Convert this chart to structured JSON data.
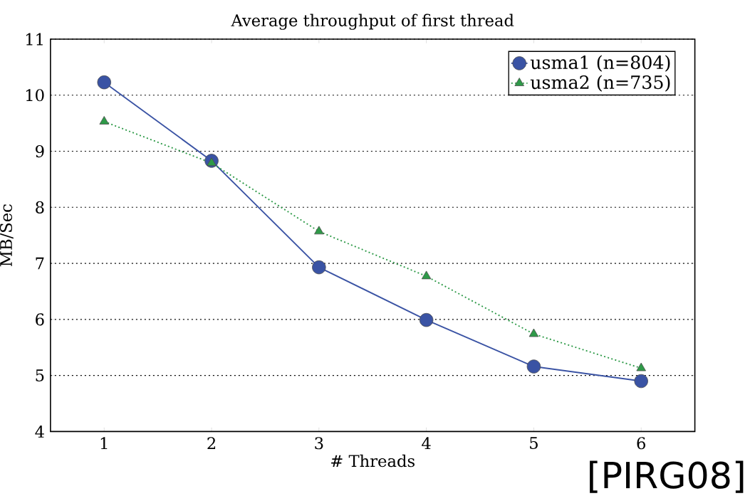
{
  "chart_data": {
    "type": "line",
    "title": "Average throughput of first thread",
    "xlabel": "# Threads",
    "ylabel": "MB/Sec",
    "x": [
      1,
      2,
      3,
      4,
      5,
      6
    ],
    "series": [
      {
        "name": "usma1 (n=804)",
        "color": "#3a53a4",
        "values": [
          10.23,
          8.83,
          6.93,
          5.99,
          5.16,
          4.9
        ],
        "marker": "circle",
        "line_style": "solid"
      },
      {
        "name": "usma2 (n=735)",
        "color": "#2e9a48",
        "values": [
          9.53,
          8.79,
          7.57,
          6.77,
          5.74,
          5.13
        ],
        "marker": "triangle",
        "line_style": "dotted"
      }
    ],
    "xlim": [
      0.5,
      6.5
    ],
    "ylim": [
      4,
      11
    ],
    "xticks": [
      1,
      2,
      3,
      4,
      5,
      6
    ],
    "yticks": [
      4,
      5,
      6,
      7,
      8,
      9,
      10,
      11
    ],
    "grid": "y",
    "legend": "top right",
    "annotations": [
      "[PIRG08]"
    ]
  }
}
